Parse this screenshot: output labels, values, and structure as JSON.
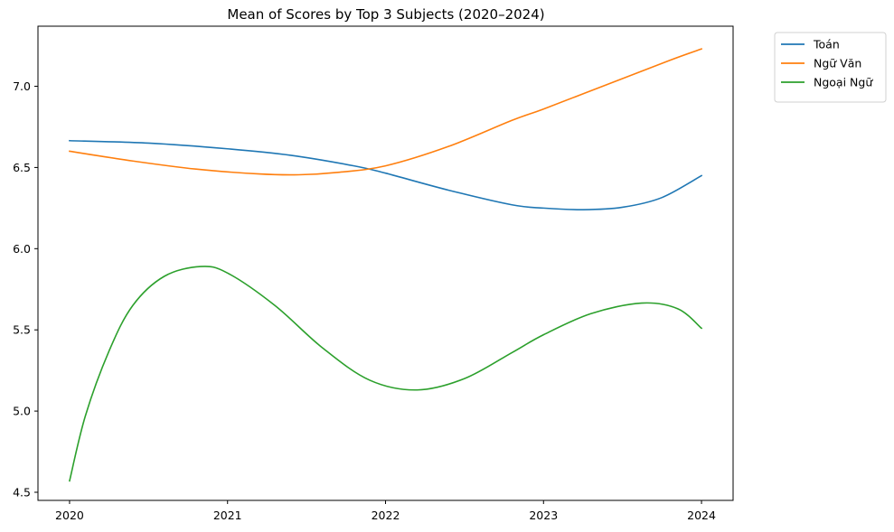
{
  "chart_data": {
    "type": "line",
    "title": "Mean of Scores by Top 3 Subjects (2020–2024)",
    "xlabel": "",
    "ylabel": "",
    "x": [
      2020,
      2021,
      2022,
      2023,
      2024
    ],
    "xlim": [
      2019.8,
      2024.2
    ],
    "ylim": [
      4.45,
      7.37
    ],
    "x_ticks": [
      "2020",
      "2021",
      "2022",
      "2023",
      "2024"
    ],
    "y_ticks": [
      "4.5",
      "5.0",
      "5.5",
      "6.0",
      "6.5",
      "7.0"
    ],
    "grid": false,
    "legend_position": "outside-top-right",
    "series": [
      {
        "name": "Toán",
        "color": "#1f77b4",
        "curve_x": [
          2020.0,
          2020.5,
          2021.0,
          2021.4,
          2021.8,
          2022.0,
          2022.4,
          2022.8,
          2023.0,
          2023.25,
          2023.5,
          2023.75,
          2024.0
        ],
        "curve_y": [
          6.665,
          6.65,
          6.615,
          6.575,
          6.51,
          6.465,
          6.36,
          6.27,
          6.25,
          6.24,
          6.255,
          6.315,
          6.45
        ]
      },
      {
        "name": "Ngữ Văn",
        "color": "#ff7f0e",
        "curve_x": [
          2020.0,
          2020.4,
          2020.8,
          2021.2,
          2021.45,
          2021.7,
          2022.0,
          2022.4,
          2022.8,
          2023.0,
          2023.4,
          2023.8,
          2024.0
        ],
        "curve_y": [
          6.6,
          6.54,
          6.49,
          6.46,
          6.455,
          6.47,
          6.51,
          6.63,
          6.79,
          6.86,
          7.01,
          7.16,
          7.23
        ]
      },
      {
        "name": "Ngoại Ngữ",
        "color": "#2ca02c",
        "curve_x": [
          2020.0,
          2020.1,
          2020.25,
          2020.4,
          2020.6,
          2020.83,
          2021.0,
          2021.3,
          2021.6,
          2021.9,
          2022.2,
          2022.5,
          2022.8,
          2023.0,
          2023.3,
          2023.62,
          2023.85,
          2024.0
        ],
        "curve_y": [
          4.57,
          4.97,
          5.37,
          5.65,
          5.83,
          5.89,
          5.85,
          5.65,
          5.39,
          5.19,
          5.13,
          5.2,
          5.36,
          5.47,
          5.6,
          5.665,
          5.63,
          5.51
        ]
      }
    ]
  }
}
